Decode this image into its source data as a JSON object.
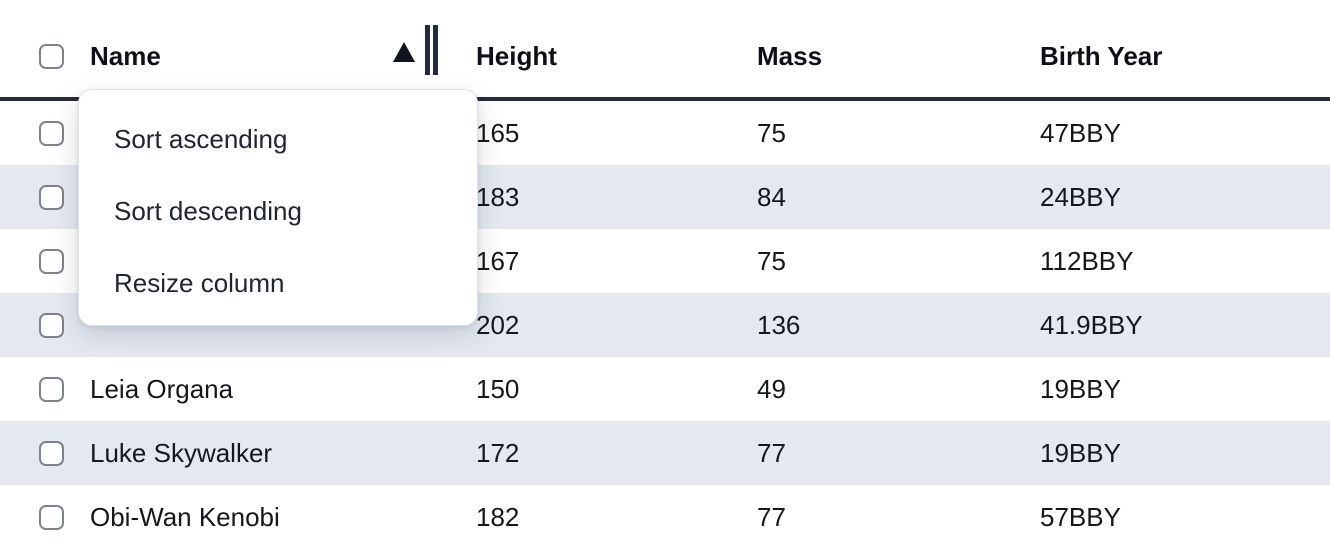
{
  "table": {
    "columns": [
      {
        "label": "Name",
        "sorted": "ascending"
      },
      {
        "label": "Height"
      },
      {
        "label": "Mass"
      },
      {
        "label": "Birth Year"
      }
    ],
    "sort_indicator": "ascending-triangle",
    "rows": [
      {
        "name": "",
        "height": "165",
        "mass": "75",
        "birth_year": "47BBY",
        "striped": false
      },
      {
        "name": "",
        "height": "183",
        "mass": "84",
        "birth_year": "24BBY",
        "striped": true
      },
      {
        "name": "",
        "height": "167",
        "mass": "75",
        "birth_year": "112BBY",
        "striped": false
      },
      {
        "name": "",
        "height": "202",
        "mass": "136",
        "birth_year": "41.9BBY",
        "striped": true
      },
      {
        "name": "Leia Organa",
        "height": "150",
        "mass": "49",
        "birth_year": "19BBY",
        "striped": false
      },
      {
        "name": "Luke Skywalker",
        "height": "172",
        "mass": "77",
        "birth_year": "19BBY",
        "striped": true
      },
      {
        "name": "Obi-Wan Kenobi",
        "height": "182",
        "mass": "77",
        "birth_year": "57BBY",
        "striped": false
      }
    ]
  },
  "context_menu": {
    "items": [
      {
        "label": "Sort ascending"
      },
      {
        "label": "Sort descending"
      },
      {
        "label": "Resize column"
      }
    ]
  },
  "colors": {
    "stripe": "#e4e9f1",
    "header_border": "#222c3c",
    "cell_text": "#14171c",
    "menu_border": "#dee2e8"
  }
}
